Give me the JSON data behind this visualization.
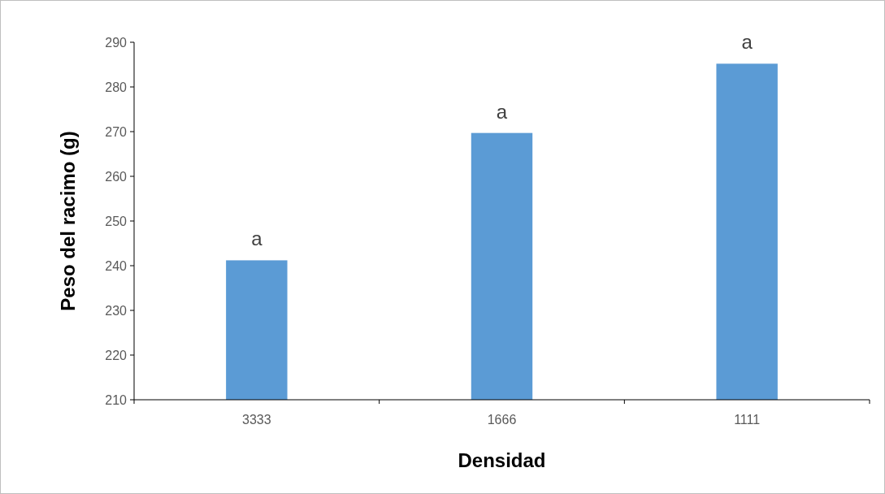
{
  "chart_data": {
    "type": "bar",
    "xlabel": "Densidad",
    "ylabel": "Peso del racimo (g)",
    "categories": [
      "3333",
      "1666",
      "1111"
    ],
    "values": [
      241.2,
      269.7,
      285.2
    ],
    "color": "#5b9bd5",
    "ylim": [
      210,
      290
    ],
    "yticks": [
      210,
      220,
      230,
      240,
      250,
      260,
      270,
      280,
      290
    ],
    "grid": false,
    "annotations": [
      {
        "text": "a",
        "x": "3333",
        "y": 241.2
      },
      {
        "text": "a",
        "x": "1666",
        "y": 269.7
      },
      {
        "text": "a",
        "x": "1111",
        "y": 285.2
      }
    ]
  }
}
